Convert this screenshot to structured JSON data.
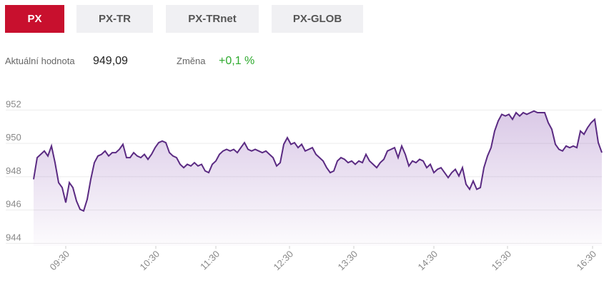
{
  "tabs": [
    "PX",
    "PX-TR",
    "PX-TRnet",
    "PX-GLOB"
  ],
  "active_tab": "PX",
  "stats": {
    "value_label": "Aktuální hodnota",
    "value": "949,09",
    "change_label": "Změna",
    "change": "+0,1 %"
  },
  "chart_data": {
    "type": "area",
    "color": "#5a2a82",
    "grid": true,
    "x": [
      0,
      1,
      2,
      3,
      4,
      5,
      6,
      7,
      8,
      9,
      10,
      11,
      12,
      13,
      14,
      15,
      16,
      17,
      18,
      19,
      20,
      21,
      22,
      23,
      24,
      25,
      26,
      27,
      28,
      29,
      30,
      31,
      32,
      33,
      34,
      35,
      36,
      37,
      38,
      39,
      40,
      41,
      42,
      43,
      44,
      45,
      46,
      47,
      48,
      49,
      50,
      51,
      52,
      53,
      54,
      55,
      56,
      57,
      58,
      59,
      60,
      61,
      62,
      63,
      64,
      65,
      66,
      67,
      68,
      69,
      70,
      71,
      72,
      73,
      74,
      75,
      76,
      77,
      78,
      79,
      80,
      81,
      82,
      83,
      84,
      85,
      86,
      87,
      88,
      89,
      90,
      91,
      92,
      93,
      94,
      95,
      96,
      97,
      98,
      99,
      100,
      101,
      102,
      103,
      104,
      105,
      106,
      107,
      108,
      109,
      110,
      111,
      112,
      113,
      114,
      115,
      116,
      117,
      118,
      119,
      120,
      121,
      122,
      123,
      124,
      125,
      126,
      127,
      128,
      129,
      130,
      131,
      132,
      133,
      134,
      135,
      136,
      137,
      138,
      139,
      140,
      141,
      142,
      143,
      144,
      145,
      146,
      147,
      148,
      149,
      150,
      151,
      152,
      153,
      154,
      155,
      156,
      157,
      158,
      159
    ],
    "values": [
      947.5,
      948.8,
      949,
      949.2,
      948.9,
      949.5,
      948.5,
      947.3,
      947,
      946.1,
      947.3,
      947,
      946.2,
      945.7,
      945.6,
      946.3,
      947.5,
      948.5,
      948.9,
      949,
      949.2,
      948.9,
      949.1,
      949.1,
      949.3,
      949.6,
      948.8,
      948.8,
      949.1,
      948.9,
      948.8,
      949,
      948.7,
      949,
      949.4,
      949.7,
      949.8,
      949.7,
      949.1,
      948.9,
      948.8,
      948.4,
      948.2,
      948.4,
      948.3,
      948.5,
      948.3,
      948.4,
      948,
      947.9,
      948.4,
      948.6,
      949,
      949.2,
      949.3,
      949.2,
      949.3,
      949.1,
      949.4,
      949.7,
      949.3,
      949.2,
      949.3,
      949.2,
      949.1,
      949.2,
      949,
      948.8,
      948.3,
      948.5,
      949.6,
      950,
      949.6,
      949.7,
      949.4,
      949.6,
      949.2,
      949.3,
      949.4,
      949,
      948.8,
      948.6,
      948.2,
      947.9,
      948,
      948.6,
      948.8,
      948.7,
      948.5,
      948.6,
      948.4,
      948.6,
      948.5,
      949,
      948.6,
      948.4,
      948.2,
      948.5,
      948.7,
      949.2,
      949.3,
      949.4,
      948.8,
      949.5,
      949,
      948.3,
      948.6,
      948.5,
      948.7,
      948.6,
      948.2,
      948.4,
      947.9,
      948.1,
      948.2,
      947.9,
      947.6,
      947.9,
      948.1,
      947.7,
      948.2,
      947.2,
      946.9,
      947.4,
      946.9,
      947,
      948.2,
      948.9,
      949.4,
      950.4,
      951,
      951.4,
      951.3,
      951.4,
      951.1,
      951.5,
      951.3,
      951.5,
      951.4,
      951.5,
      951.6,
      951.5,
      951.5,
      951.5,
      950.9,
      950.5,
      949.6,
      949.3,
      949.2,
      949.5,
      949.4,
      949.5,
      949.4,
      950.4,
      950.2,
      950.6,
      950.9,
      951.1,
      949.7,
      949.1
    ],
    "xlim": [
      0,
      159
    ],
    "xticks": [
      {
        "value": 9,
        "label": "09:30"
      },
      {
        "value": 34.2,
        "label": "10:30"
      },
      {
        "value": 51,
        "label": "11:30"
      },
      {
        "value": 71.6,
        "label": "12:30"
      },
      {
        "value": 89.6,
        "label": "13:30"
      },
      {
        "value": 112,
        "label": "14:30"
      },
      {
        "value": 132.6,
        "label": "15:30"
      },
      {
        "value": 156.4,
        "label": "16:30"
      }
    ],
    "ylim": [
      943.5,
      952.7
    ],
    "yticks": [
      944,
      946,
      948,
      950,
      952
    ]
  }
}
